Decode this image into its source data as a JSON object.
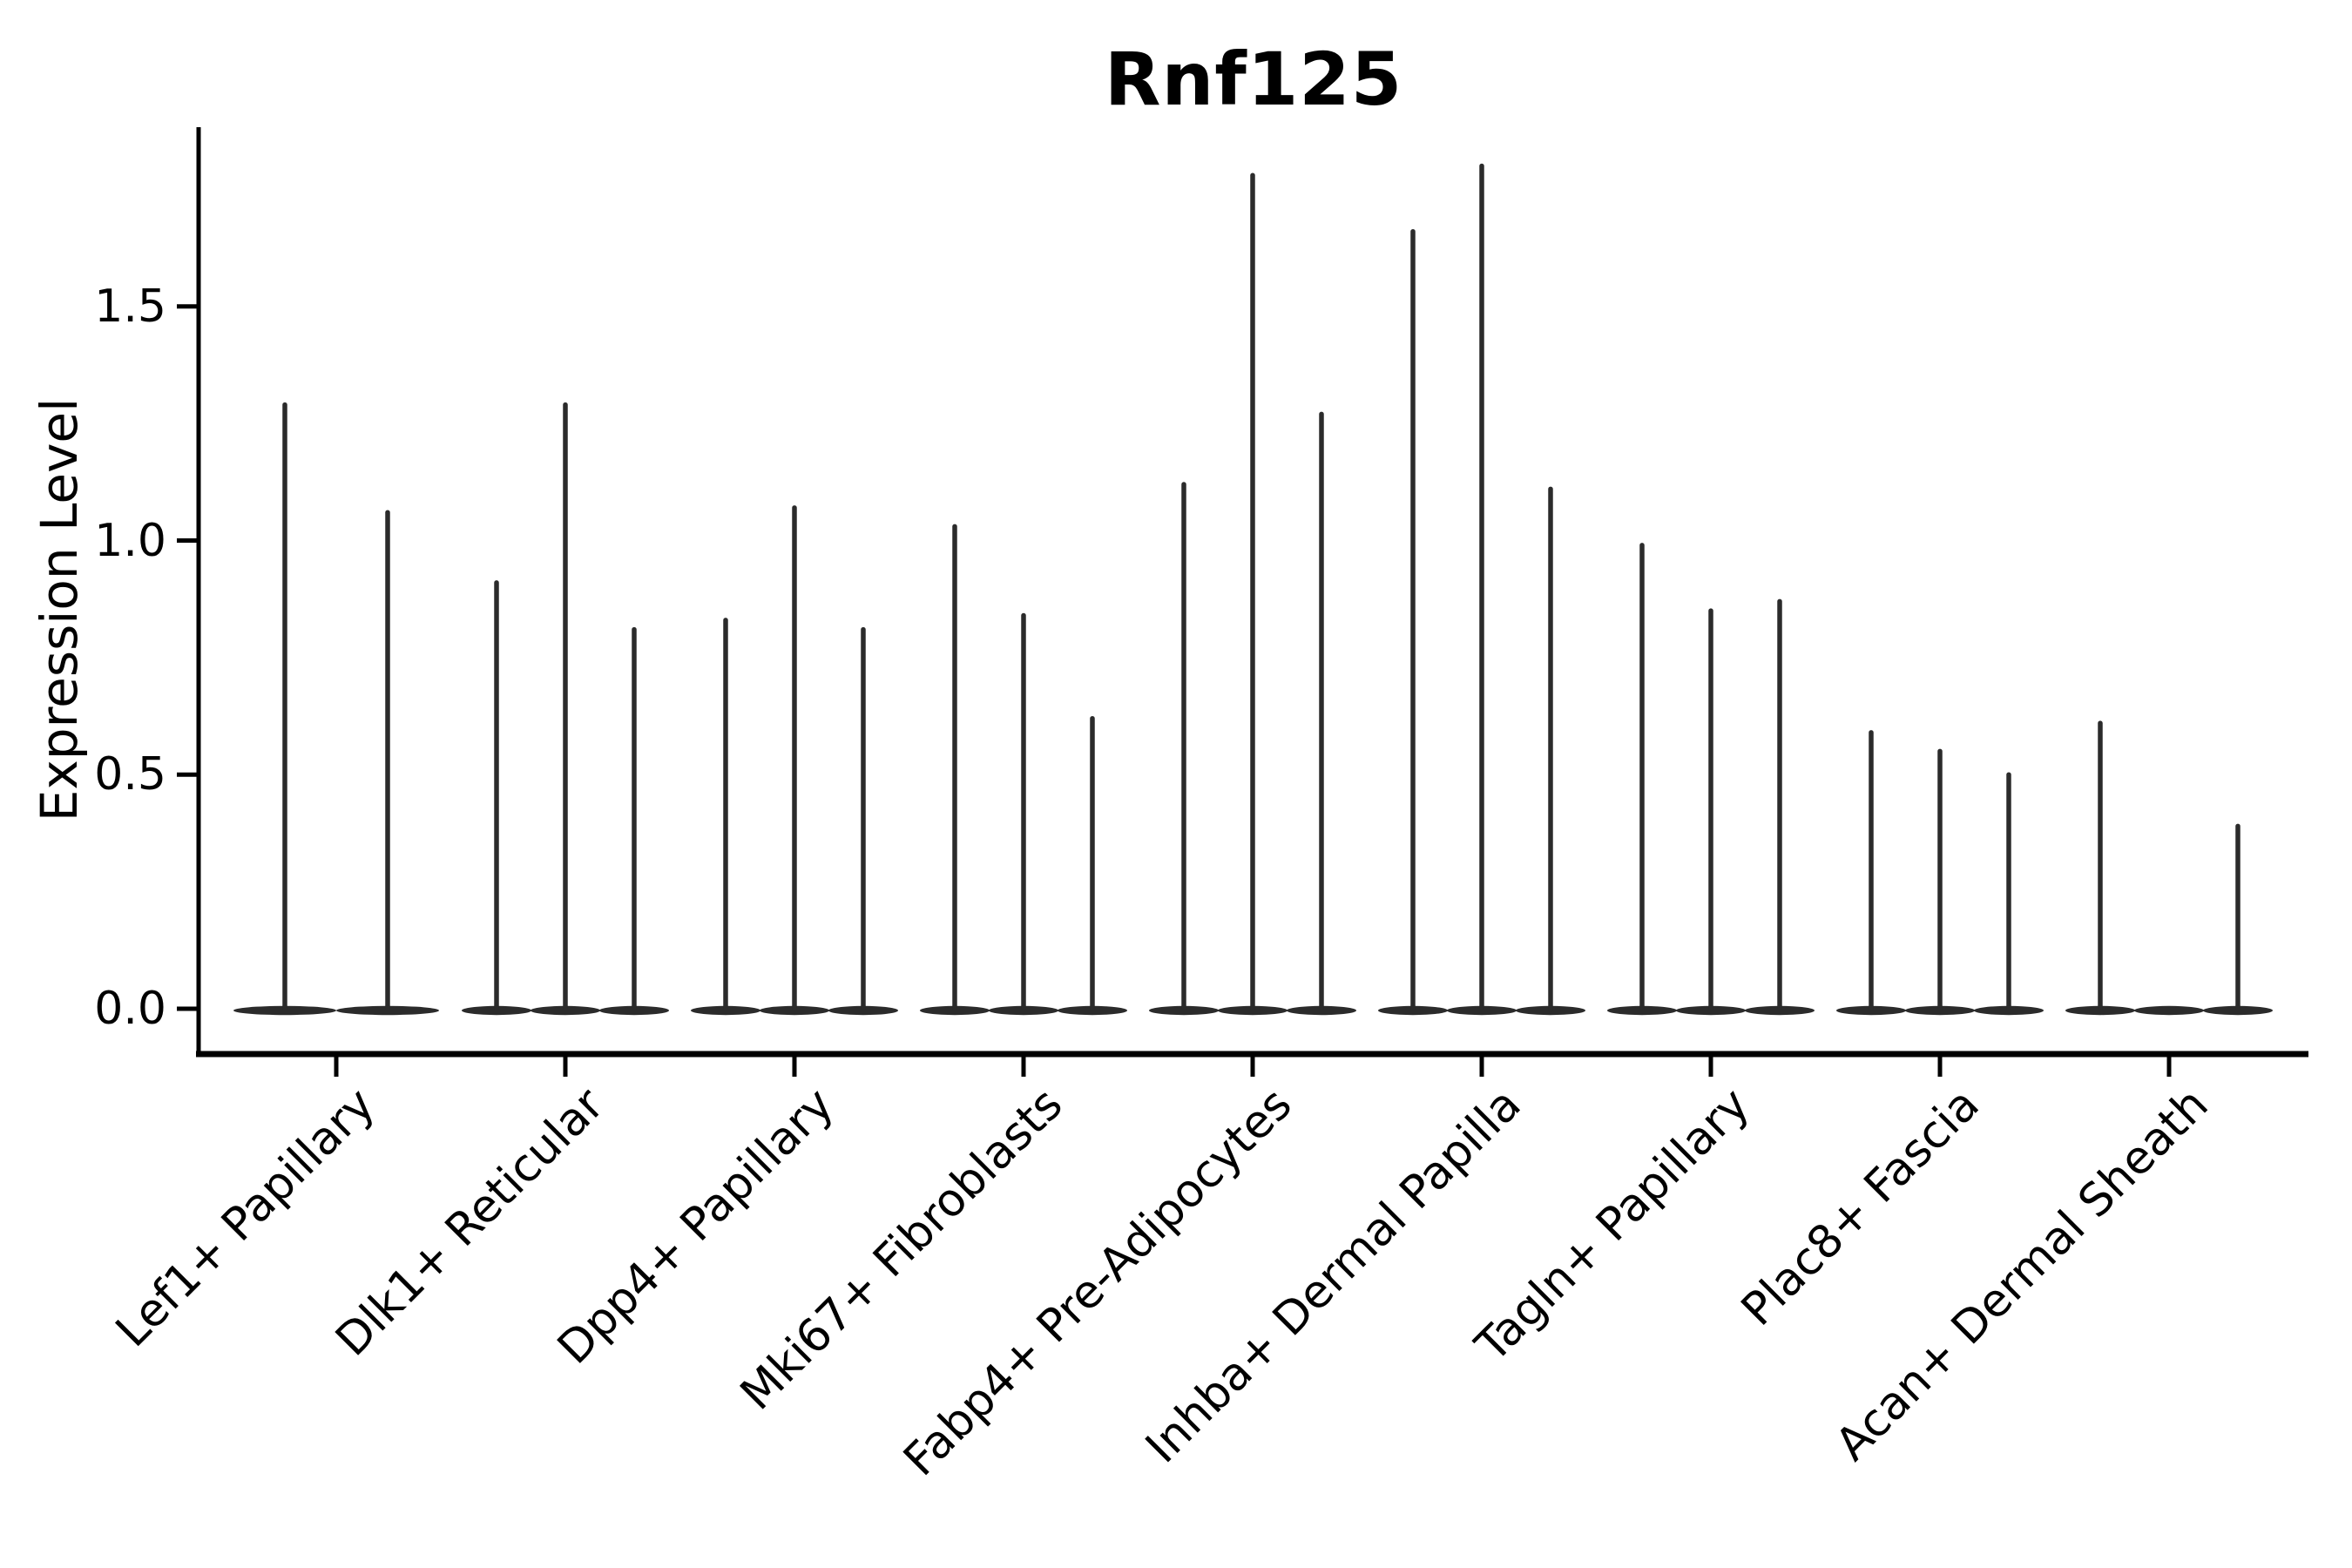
{
  "title": "Rnf125",
  "y_axis": {
    "label": "Expression Level",
    "ticks": [
      {
        "label": "0.0",
        "value": 0.0
      },
      {
        "label": "0.5",
        "value": 0.5
      },
      {
        "label": "1.0",
        "value": 1.0
      },
      {
        "label": "1.5",
        "value": 1.5
      }
    ]
  },
  "chart_data": {
    "type": "violin",
    "title": "Rnf125",
    "xlabel": "",
    "ylabel": "Expression Level",
    "ylim": [
      -0.09,
      1.88
    ],
    "yticks": [
      0.0,
      0.5,
      1.0,
      1.5
    ],
    "grid": false,
    "legend_position": "none",
    "categories": [
      "Lef1+ Papillary",
      "Dlk1+ Reticular",
      "Dpp4+ Papillary",
      "Mki67+ Fibroblasts",
      "Fabp4+ Pre-Adipocytes",
      "Inhba+ Dermal Papilla",
      "Tagln+ Papillary",
      "Plac8+ Fascia",
      "Acan+ Dermal Sheath"
    ],
    "description": "Single-cell expression violin plot; each category holds thin spike-like violins (most cells at 0, spikes mark maximum expression).",
    "groups": [
      {
        "category": "Lef1+ Papillary",
        "violin_max_values": [
          1.29,
          1.06
        ]
      },
      {
        "category": "Dlk1+ Reticular",
        "violin_max_values": [
          0.91,
          1.29,
          0.81
        ]
      },
      {
        "category": "Dpp4+ Papillary",
        "violin_max_values": [
          0.83,
          1.07,
          0.81
        ]
      },
      {
        "category": "Mki67+ Fibroblasts",
        "violin_max_values": [
          1.03,
          0.84,
          0.62
        ]
      },
      {
        "category": "Fabp4+ Pre-Adipocytes",
        "violin_max_values": [
          1.12,
          1.78,
          1.27
        ]
      },
      {
        "category": "Inhba+ Dermal Papilla",
        "violin_max_values": [
          1.66,
          1.8,
          1.11
        ]
      },
      {
        "category": "Tagln+ Papillary",
        "violin_max_values": [
          0.99,
          0.85,
          0.87
        ]
      },
      {
        "category": "Plac8+ Fascia",
        "violin_max_values": [
          0.59,
          0.55,
          0.5
        ]
      },
      {
        "category": "Acan+ Dermal Sheath",
        "violin_max_values": [
          0.61,
          0.0,
          0.39
        ]
      }
    ],
    "colors": {
      "violin_stroke": "#2b2b2b",
      "axis": "#000000",
      "background": "#ffffff"
    }
  }
}
